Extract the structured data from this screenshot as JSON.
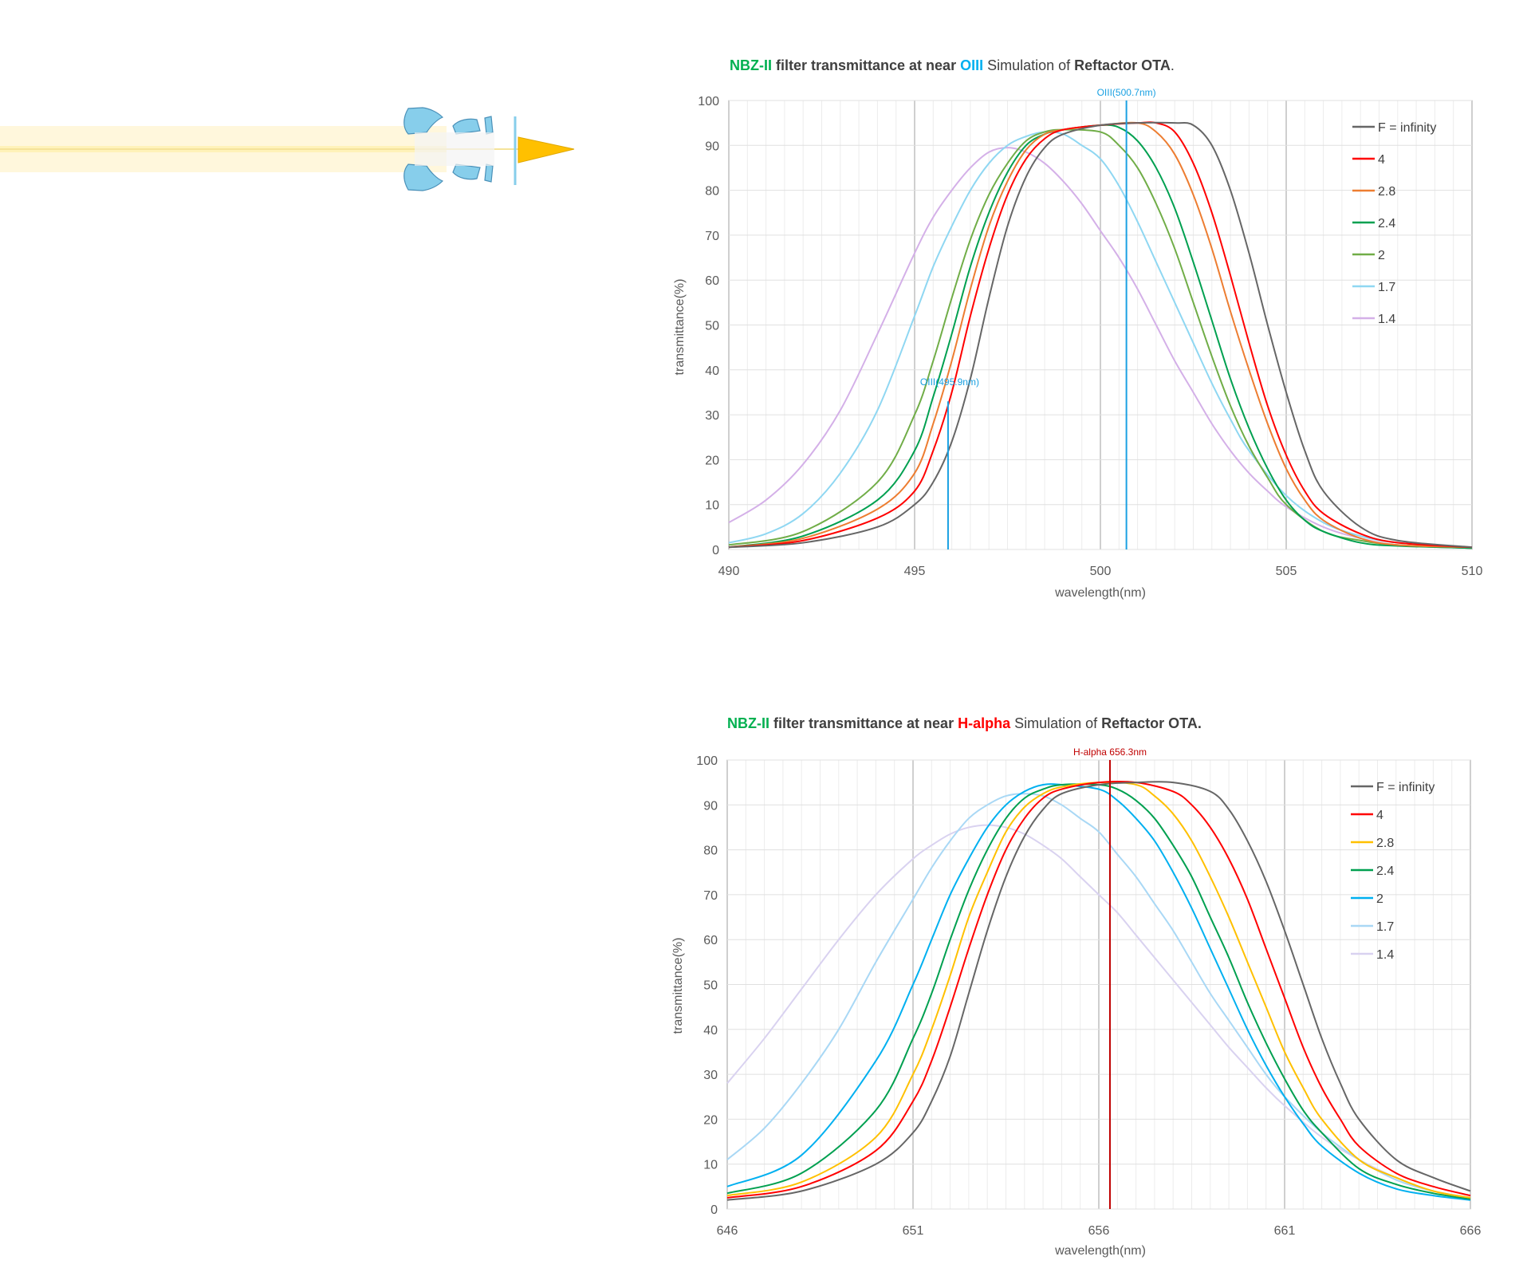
{
  "colors": {
    "nbz": "#00B050",
    "oiii": "#00B0F0",
    "halpha": "#FF0000",
    "title_text": "#404040",
    "axis_text": "#595959",
    "oiii_marker": "#1BA1E2",
    "halpha_marker": "#C00000"
  },
  "illustration": {
    "name": "refractor light path diagram",
    "light_beam_color": "#FFF3C4",
    "focus_cone_color": "#FFC000",
    "lens_color": "#87CEEB"
  },
  "chart_data": [
    {
      "type": "line",
      "title_parts": {
        "filter": "NBZ-II",
        "middle": " filter transmittance  at near ",
        "line": "OIII",
        "sim_prefix": "   Simulation of ",
        "ota": "Reftactor OTA",
        "end": "."
      },
      "xlabel": "wavelength(nm)",
      "ylabel": "transmittance(%)",
      "xlim": [
        490,
        510
      ],
      "ylim": [
        0,
        100
      ],
      "xticks": [
        490,
        495,
        500,
        505,
        510
      ],
      "yticks": [
        0,
        10,
        20,
        30,
        40,
        50,
        60,
        70,
        80,
        90,
        100
      ],
      "markers": [
        {
          "label": "OIII(500.7nm)",
          "x": 500.7,
          "top": 100
        },
        {
          "label": "OIII(495.9nm)",
          "x": 495.9,
          "top": 33
        }
      ],
      "series": [
        {
          "name": "F = infinity",
          "color": "#666666",
          "x": [
            490,
            492,
            494,
            495,
            495.5,
            496,
            496.5,
            497,
            497.5,
            498,
            498.5,
            499,
            500,
            501,
            502,
            502.5,
            503,
            503.5,
            504,
            504.5,
            505,
            505.5,
            506,
            507,
            508,
            510
          ],
          "values": [
            0.5,
            1.5,
            5,
            10,
            15,
            24,
            38,
            56,
            72,
            83,
            89.5,
            92.5,
            94.5,
            95,
            95,
            94.5,
            90,
            80,
            66,
            50,
            35,
            22,
            13,
            5,
            2,
            0.5
          ]
        },
        {
          "name": "4",
          "color": "#FF0000",
          "x": [
            490,
            492,
            494,
            495,
            495.5,
            496,
            496.5,
            497,
            497.5,
            498,
            498.5,
            499,
            500,
            501,
            501.5,
            502,
            502.5,
            503,
            503.5,
            504,
            504.5,
            505,
            505.5,
            506,
            507,
            508,
            510
          ],
          "values": [
            0.5,
            2,
            7,
            13,
            22,
            35,
            52,
            67,
            79,
            87,
            91.5,
            93.5,
            94.5,
            95,
            95,
            93,
            86,
            75,
            61,
            46,
            32,
            21,
            13,
            8,
            3.5,
            1.5,
            0.5
          ]
        },
        {
          "name": "2.8",
          "color": "#ED7D31",
          "x": [
            490,
            492,
            494,
            495,
            495.5,
            496,
            496.5,
            497,
            497.5,
            498,
            498.5,
            499,
            500,
            501,
            501.5,
            502,
            502.5,
            503,
            503.5,
            504,
            504.5,
            505,
            505.5,
            506,
            507,
            508,
            510
          ],
          "values": [
            0.5,
            2.5,
            9,
            17,
            28,
            42,
            58,
            72,
            82,
            89,
            92.5,
            93.5,
            94.5,
            95,
            93,
            88,
            79,
            67,
            53,
            40,
            28,
            18,
            11,
            6.5,
            2.5,
            1,
            0.5
          ]
        },
        {
          "name": "2.4",
          "color": "#00A050",
          "x": [
            490,
            492,
            494,
            495,
            495.5,
            496,
            496.5,
            497,
            497.5,
            498,
            498.5,
            499,
            500,
            500.5,
            501,
            501.5,
            502,
            502.5,
            503,
            503.5,
            504,
            504.5,
            505,
            505.5,
            506,
            507,
            508,
            510
          ],
          "values": [
            0.5,
            3,
            11,
            22,
            34,
            48,
            63,
            75,
            84,
            90,
            92.5,
            93.5,
            94.5,
            94,
            91,
            85,
            76,
            64,
            51,
            38,
            27,
            18,
            11,
            6.5,
            4,
            1.5,
            0.8,
            0.3
          ]
        },
        {
          "name": "2",
          "color": "#70AD47",
          "x": [
            490,
            492,
            494,
            495,
            495.5,
            496,
            496.5,
            497,
            497.5,
            498,
            498.5,
            499,
            500,
            500.5,
            501,
            501.5,
            502,
            502.5,
            503,
            503.5,
            504,
            504.5,
            505,
            506,
            507,
            508,
            510
          ],
          "values": [
            1,
            4,
            15,
            30,
            42,
            56,
            69,
            79,
            86,
            91,
            93,
            93.5,
            93,
            90,
            85,
            77,
            67,
            55,
            43,
            32,
            23,
            16,
            10,
            4,
            2,
            1,
            0.3
          ]
        },
        {
          "name": "1.7",
          "color": "#8FD7F2",
          "x": [
            490,
            491,
            492,
            493,
            494,
            495,
            495.5,
            496,
            496.5,
            497,
            497.5,
            498,
            498.5,
            499,
            499.5,
            500,
            500.5,
            501,
            501.5,
            502,
            502.5,
            503,
            503.5,
            504,
            505,
            506,
            507,
            508,
            510
          ],
          "values": [
            1.5,
            3.5,
            8,
            17,
            31,
            52,
            63,
            72,
            80,
            86,
            90,
            92,
            93,
            92.5,
            90,
            87,
            81,
            73,
            64,
            55,
            46,
            37,
            29,
            22,
            12,
            6,
            3,
            1.5,
            0.3
          ]
        },
        {
          "name": "1.4",
          "color": "#D4B0E8",
          "x": [
            490,
            491,
            492,
            493,
            494,
            495,
            495.5,
            496,
            496.5,
            497,
            497.5,
            498,
            498.5,
            499,
            499.5,
            500,
            500.5,
            501,
            501.5,
            502,
            502.5,
            503,
            503.5,
            504,
            504.5,
            505,
            506,
            507,
            508,
            510
          ],
          "values": [
            6,
            11,
            19,
            31,
            48,
            66,
            74,
            80,
            85,
            88.5,
            89.5,
            88.5,
            86,
            82,
            77,
            71,
            65,
            58,
            50,
            42,
            35,
            28,
            22,
            17,
            13,
            9.5,
            5,
            2.5,
            1,
            0.3
          ]
        }
      ]
    },
    {
      "type": "line",
      "title_parts": {
        "filter": "NBZ-II",
        "middle": " filter transmittance  at near ",
        "line": "H-alpha",
        "sim_prefix": "    Simulation of ",
        "ota": "Reftactor OTA.",
        "end": ""
      },
      "xlabel": "wavelength(nm)",
      "ylabel": "transmittance(%)",
      "xlim": [
        646,
        666
      ],
      "ylim": [
        0,
        100
      ],
      "xticks": [
        646,
        651,
        656,
        661,
        666
      ],
      "yticks": [
        0,
        10,
        20,
        30,
        40,
        50,
        60,
        70,
        80,
        90,
        100
      ],
      "markers": [
        {
          "label": "H-alpha 656.3nm",
          "x": 656.3,
          "top": 100
        }
      ],
      "series": [
        {
          "name": "F = infinity",
          "color": "#666666",
          "x": [
            646,
            648,
            650,
            651,
            651.5,
            652,
            652.5,
            653,
            653.5,
            654,
            654.5,
            655,
            656,
            657,
            658,
            659,
            659.5,
            660,
            660.5,
            661,
            661.5,
            662,
            662.5,
            663,
            664,
            665,
            666
          ],
          "values": [
            2,
            4,
            10,
            17,
            24,
            34,
            48,
            62,
            74,
            83,
            89,
            92.5,
            94.5,
            95,
            95,
            93,
            89,
            82,
            73,
            62,
            50,
            38,
            28,
            20,
            11,
            7,
            4
          ]
        },
        {
          "name": "4",
          "color": "#FF0000",
          "x": [
            646,
            648,
            650,
            651,
            651.5,
            652,
            652.5,
            653,
            653.5,
            654,
            654.5,
            655,
            656,
            657,
            658,
            658.5,
            659,
            659.5,
            660,
            660.5,
            661,
            661.5,
            662,
            662.5,
            663,
            664,
            665,
            666
          ],
          "values": [
            2.5,
            5,
            13,
            24,
            33,
            45,
            58,
            70,
            80,
            87,
            91.5,
            93.5,
            95,
            95,
            93,
            90,
            85,
            78,
            69,
            58,
            47,
            36,
            27,
            20,
            14,
            8,
            5,
            3
          ]
        },
        {
          "name": "2.8",
          "color": "#FFC000",
          "x": [
            646,
            648,
            650,
            651,
            651.5,
            652,
            652.5,
            653,
            653.5,
            654,
            654.5,
            655,
            656,
            657,
            657.5,
            658,
            658.5,
            659,
            659.5,
            660,
            660.5,
            661,
            661.5,
            662,
            663,
            664,
            665,
            666
          ],
          "values": [
            3,
            6,
            16,
            30,
            40,
            52,
            65,
            75,
            84,
            89.5,
            92.5,
            94,
            95,
            94.5,
            92,
            88,
            82,
            74,
            65,
            55,
            45,
            35,
            27,
            20,
            11,
            7,
            4,
            2.5
          ]
        },
        {
          "name": "2.4",
          "color": "#00A050",
          "x": [
            646,
            648,
            650,
            651,
            651.5,
            652,
            652.5,
            653,
            653.5,
            654,
            654.5,
            655,
            656,
            656.5,
            657,
            657.5,
            658,
            658.5,
            659,
            659.5,
            660,
            660.5,
            661,
            661.5,
            662,
            663,
            664,
            665,
            666
          ],
          "values": [
            3.5,
            8,
            22,
            38,
            48,
            60,
            71,
            80,
            87,
            91.5,
            93.5,
            94.5,
            94.5,
            93.5,
            91,
            87,
            81,
            74,
            65,
            56,
            46,
            37,
            29,
            22,
            17,
            9,
            5.5,
            3.5,
            2.2
          ]
        },
        {
          "name": "2",
          "color": "#00B0F0",
          "x": [
            646,
            648,
            650,
            651,
            651.5,
            652,
            652.5,
            653,
            653.5,
            654,
            654.5,
            655,
            656,
            656.5,
            657,
            657.5,
            658,
            658.5,
            659,
            659.5,
            660,
            660.5,
            661,
            661.5,
            662,
            663,
            664,
            665,
            666
          ],
          "values": [
            5,
            12,
            33,
            50,
            60,
            70,
            78,
            85,
            90,
            93,
            94.5,
            94.5,
            93.5,
            91,
            87,
            82,
            75,
            67,
            58,
            49,
            40,
            32,
            25,
            19,
            14,
            8,
            4.5,
            3,
            2
          ]
        },
        {
          "name": "1.7",
          "color": "#A9D8F5",
          "x": [
            646,
            647,
            648,
            649,
            650,
            651,
            651.5,
            652,
            652.5,
            653,
            653.5,
            654,
            654.5,
            655,
            655.5,
            656,
            656.5,
            657,
            657.5,
            658,
            658.5,
            659,
            659.5,
            660,
            660.5,
            661,
            662,
            663,
            664,
            665,
            666
          ],
          "values": [
            11,
            18,
            28,
            40,
            55,
            69,
            76,
            82,
            87,
            90,
            92,
            92.5,
            92,
            90,
            87,
            84,
            79,
            74,
            68,
            62,
            55,
            48,
            42,
            36,
            30,
            25,
            17,
            11,
            6.5,
            4,
            2.5
          ]
        },
        {
          "name": "1.4",
          "color": "#D9D2F0",
          "x": [
            646,
            647,
            648,
            649,
            650,
            651,
            651.5,
            652,
            652.5,
            653,
            653.5,
            654,
            654.5,
            655,
            655.5,
            656,
            656.5,
            657,
            657.5,
            658,
            658.5,
            659,
            659.5,
            660,
            660.5,
            661,
            662,
            663,
            664,
            665,
            666
          ],
          "values": [
            28,
            38,
            49,
            60,
            70,
            78,
            81,
            83.5,
            85,
            85.5,
            85,
            83.5,
            81,
            78,
            74,
            70,
            66,
            61,
            56,
            51,
            46,
            41,
            36,
            31.5,
            27,
            23,
            16,
            11,
            7,
            4,
            2
          ]
        }
      ]
    }
  ]
}
